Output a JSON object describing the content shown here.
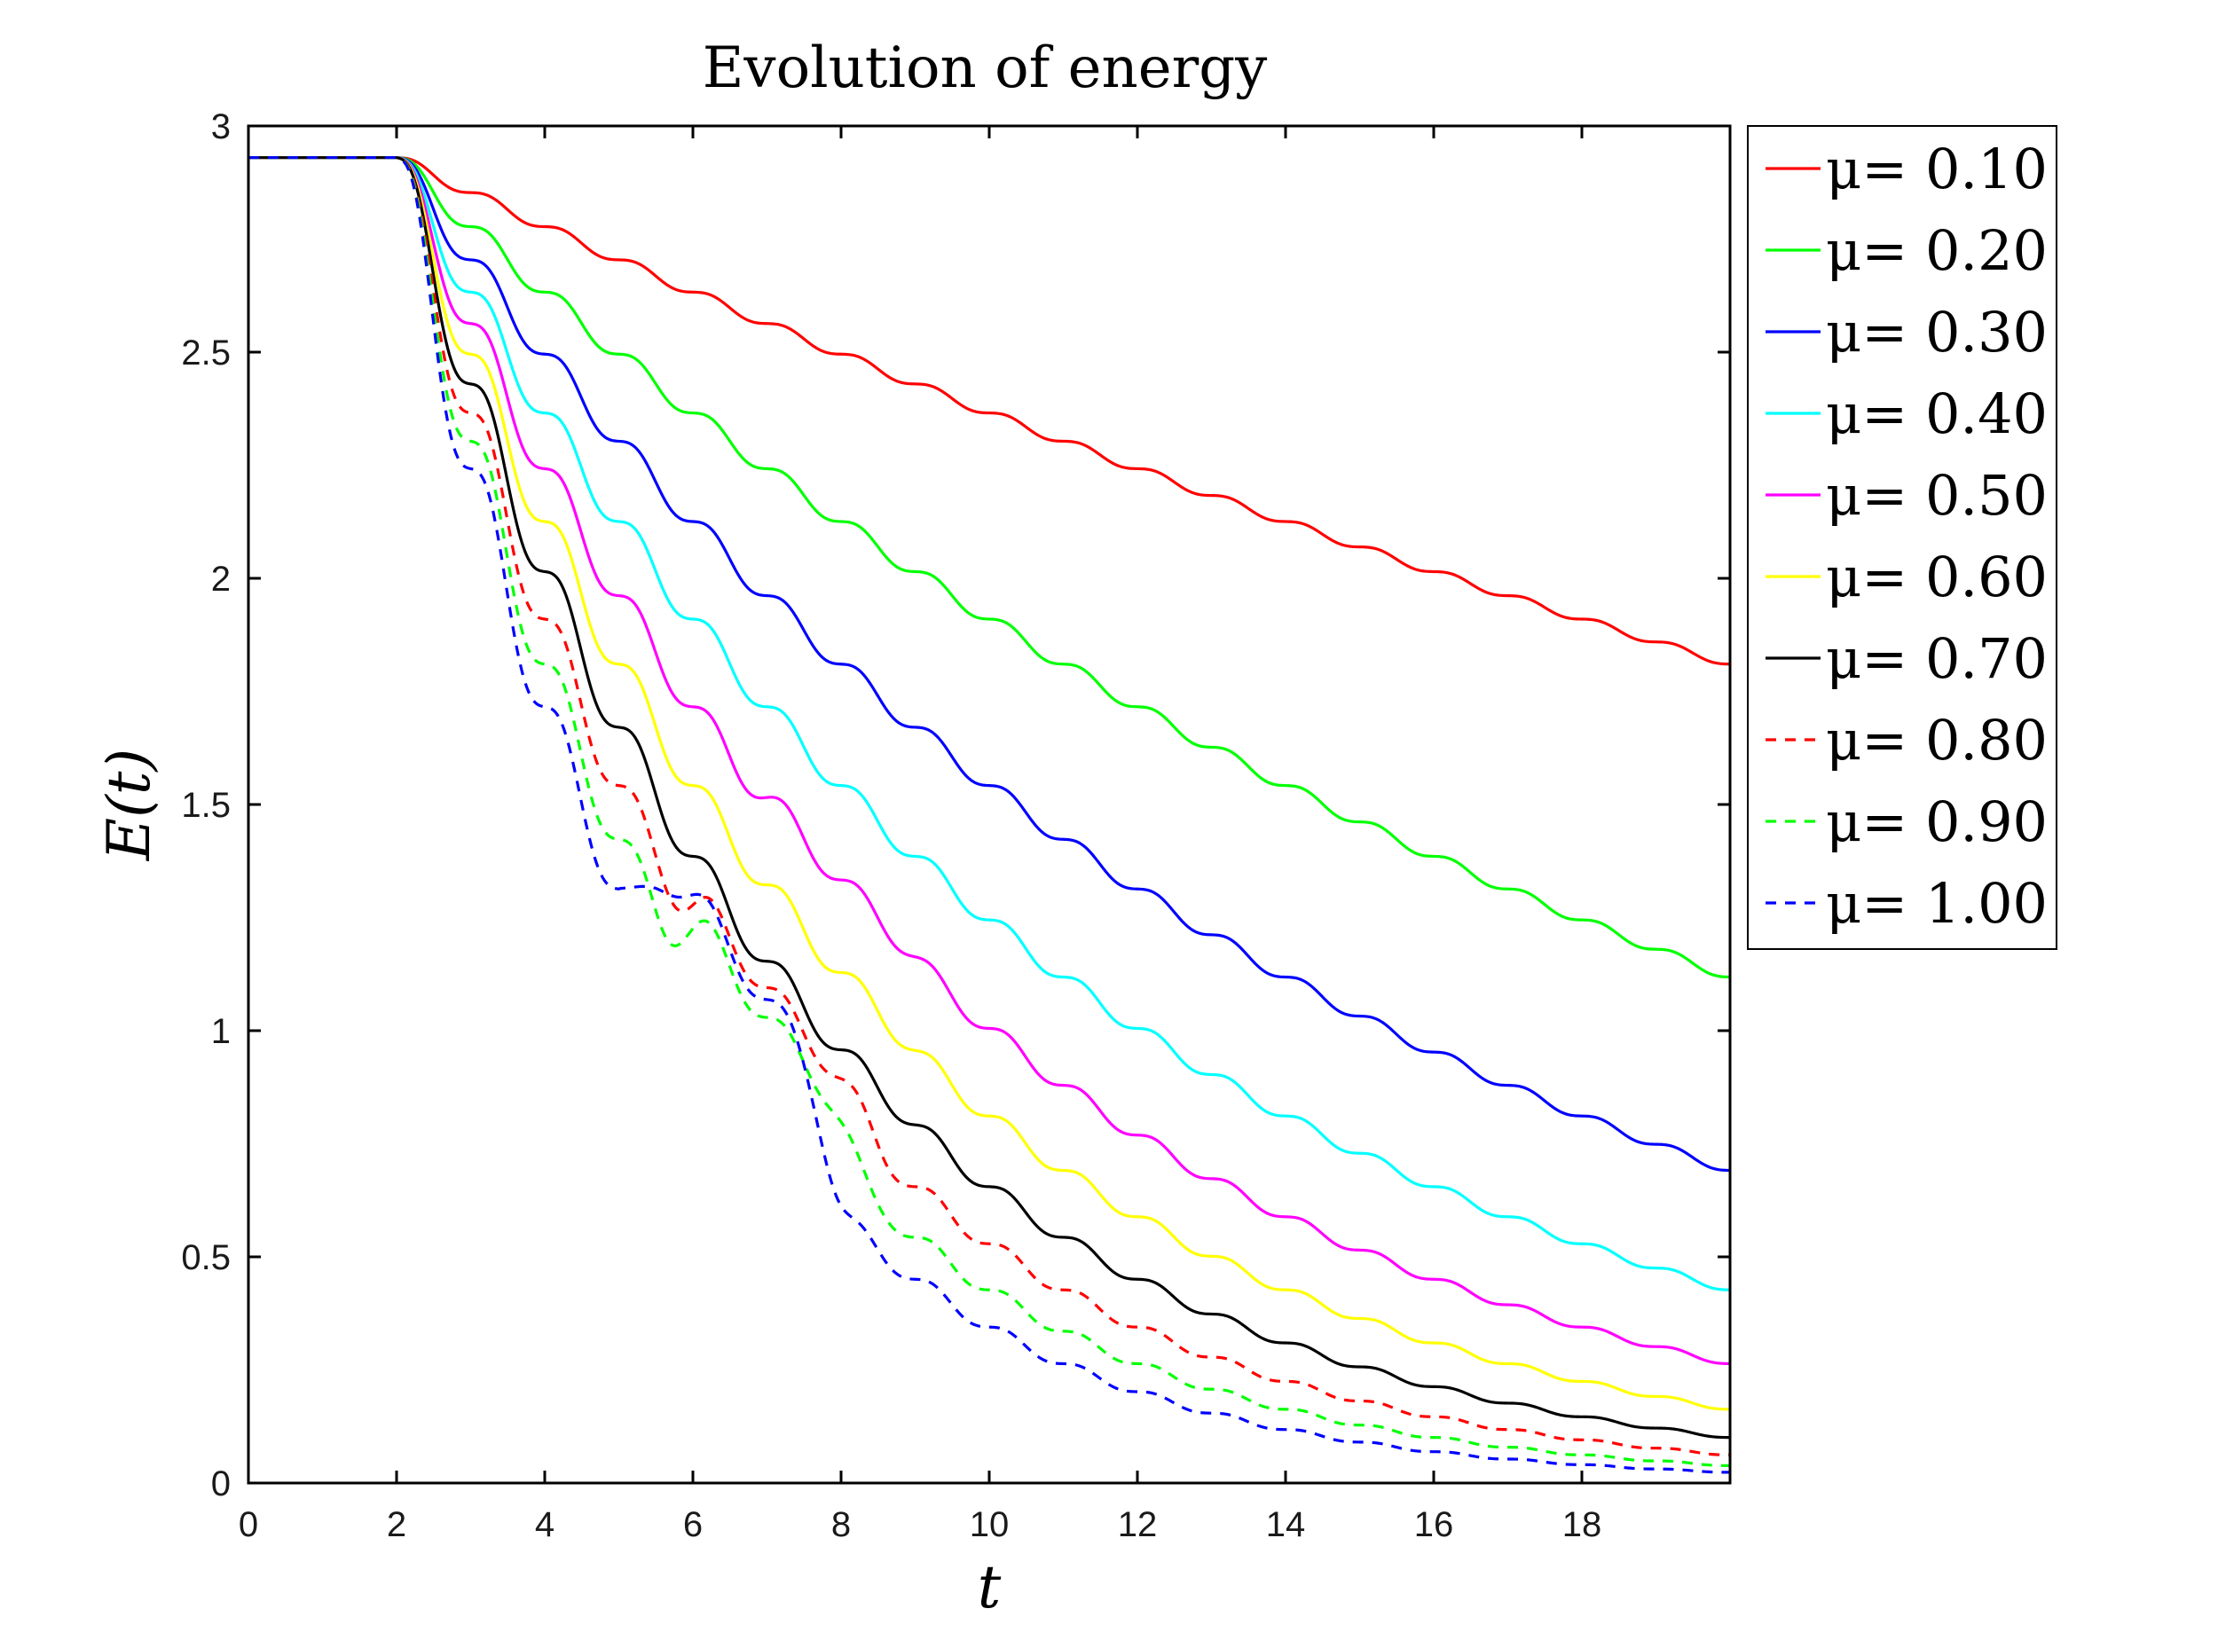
{
  "chart_data": {
    "type": "line",
    "title": "Evolution of energy",
    "xlabel": "t",
    "ylabel": "E(t)",
    "xlim": [
      0,
      20
    ],
    "ylim": [
      0,
      3
    ],
    "xticks": [
      0,
      2,
      4,
      6,
      8,
      10,
      12,
      14,
      16,
      18
    ],
    "yticks": [
      0,
      0.5,
      1,
      1.5,
      2,
      2.5,
      3
    ],
    "xtick_labels": [
      "0",
      "2",
      "4",
      "6",
      "8",
      "10",
      "12",
      "14",
      "16",
      "18"
    ],
    "ytick_labels": [
      "0",
      "0.5",
      "1",
      "1.5",
      "2",
      "2.5",
      "3"
    ],
    "grid": false,
    "legend_position": "outside-right-top",
    "initial_energy": 2.93,
    "damping_start": 2,
    "series": [
      {
        "name": "μ= 0.10",
        "mu": 0.1,
        "color": "#ff0000",
        "dash": "solid"
      },
      {
        "name": "μ= 0.20",
        "mu": 0.2,
        "color": "#00ff00",
        "dash": "solid"
      },
      {
        "name": "μ= 0.30",
        "mu": 0.3,
        "color": "#0000ff",
        "dash": "solid"
      },
      {
        "name": "μ= 0.40",
        "mu": 0.4,
        "color": "#00ffff",
        "dash": "solid"
      },
      {
        "name": "μ= 0.50",
        "mu": 0.5,
        "color": "#ff00ff",
        "dash": "solid"
      },
      {
        "name": "μ= 0.60",
        "mu": 0.6,
        "color": "#ffff00",
        "dash": "solid"
      },
      {
        "name": "μ= 0.70",
        "mu": 0.7,
        "color": "#000000",
        "dash": "solid"
      },
      {
        "name": "μ= 0.80",
        "mu": 0.8,
        "color": "#ff0000",
        "dash": "dashed"
      },
      {
        "name": "μ= 0.90",
        "mu": 0.9,
        "color": "#00ff00",
        "dash": "dashed"
      },
      {
        "name": "μ= 1.00",
        "mu": 1.0,
        "color": "#0000ff",
        "dash": "dashed"
      }
    ]
  }
}
